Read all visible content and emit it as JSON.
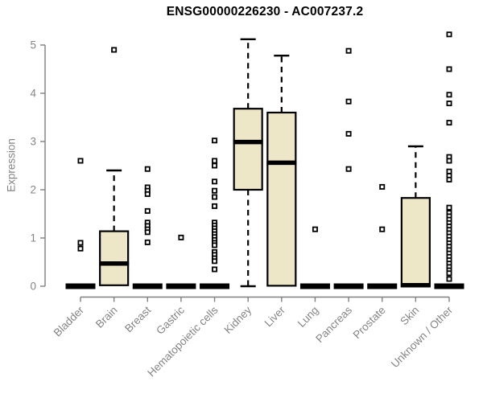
{
  "chart_data": {
    "type": "boxplot",
    "title": "ENSG00000226230 - AC007237.2",
    "ylabel": "Expression",
    "xlabel": "",
    "ylim": [
      0,
      5.3
    ],
    "yticks": [
      0,
      1,
      2,
      3,
      4,
      5
    ],
    "grid": false,
    "legend_position": "none",
    "categories": [
      "Bladder",
      "Brain",
      "Breast",
      "Gastric",
      "Hematopoietic cells",
      "Kidney",
      "Liver",
      "Lung",
      "Pancreas",
      "Prostate",
      "Skin",
      "Unknown / Other"
    ],
    "series": [
      {
        "category": "Bladder",
        "q1": 0,
        "median": 0,
        "q3": 0,
        "whisker_low": 0,
        "whisker_high": 0,
        "outliers": [
          2.6,
          0.9,
          0.78
        ]
      },
      {
        "category": "Brain",
        "q1": 0.02,
        "median": 0.47,
        "q3": 1.14,
        "whisker_low": 0.02,
        "whisker_high": 2.4,
        "outliers": [
          4.9
        ]
      },
      {
        "category": "Breast",
        "q1": 0,
        "median": 0,
        "q3": 0,
        "whisker_low": 0,
        "whisker_high": 0,
        "outliers": [
          2.43,
          2.05,
          1.98,
          1.91,
          1.56,
          1.32,
          1.25,
          1.18,
          1.12,
          0.91
        ]
      },
      {
        "category": "Gastric",
        "q1": 0,
        "median": 0,
        "q3": 0,
        "whisker_low": 0,
        "whisker_high": 0,
        "outliers": [
          1.01
        ]
      },
      {
        "category": "Hematopoietic cells",
        "q1": 0,
        "median": 0,
        "q3": 0,
        "whisker_low": 0,
        "whisker_high": 0,
        "outliers": [
          3.02,
          2.6,
          2.5,
          2.17,
          1.98,
          1.85,
          1.66,
          1.32,
          1.26,
          1.2,
          1.14,
          1.08,
          1.02,
          0.96,
          0.9,
          0.85,
          0.71,
          0.65,
          0.58,
          0.52,
          0.35
        ]
      },
      {
        "category": "Kidney",
        "q1": 2.0,
        "median": 2.99,
        "q3": 3.68,
        "whisker_low": 0,
        "whisker_high": 5.12,
        "outliers": []
      },
      {
        "category": "Liver",
        "q1": 0.01,
        "median": 2.56,
        "q3": 3.6,
        "whisker_low": 0.01,
        "whisker_high": 4.78,
        "outliers": []
      },
      {
        "category": "Lung",
        "q1": 0,
        "median": 0,
        "q3": 0,
        "whisker_low": 0,
        "whisker_high": 0,
        "outliers": [
          1.18
        ]
      },
      {
        "category": "Pancreas",
        "q1": 0,
        "median": 0,
        "q3": 0,
        "whisker_low": 0,
        "whisker_high": 0,
        "outliers": [
          4.88,
          3.83,
          3.16,
          2.43
        ]
      },
      {
        "category": "Prostate",
        "q1": 0,
        "median": 0,
        "q3": 0,
        "whisker_low": 0,
        "whisker_high": 0,
        "outliers": [
          2.06,
          1.18
        ]
      },
      {
        "category": "Skin",
        "q1": 0,
        "median": 0.02,
        "q3": 1.83,
        "whisker_low": 0,
        "whisker_high": 2.9,
        "outliers": []
      },
      {
        "category": "Unknown / Other",
        "q1": 0,
        "median": 0,
        "q3": 0,
        "whisker_low": 0,
        "whisker_high": 0,
        "outliers": [
          5.22,
          4.5,
          3.97,
          3.79,
          3.39,
          2.68,
          2.6,
          2.38,
          2.29,
          2.21,
          1.63,
          1.52,
          1.45,
          1.38,
          1.31,
          1.24,
          1.17,
          1.1,
          1.03,
          0.96,
          0.89,
          0.82,
          0.75,
          0.68,
          0.61,
          0.54,
          0.47,
          0.4,
          0.33,
          0.27,
          0.15
        ]
      }
    ],
    "colors": {
      "box_fill": "#ede7c8",
      "box_border": "#000000",
      "median": "#000000",
      "whisker": "#000000",
      "outlier": "#000000",
      "axis": "#808080",
      "tick_label": "#848484",
      "title": "#000000",
      "background": "#ffffff"
    }
  }
}
